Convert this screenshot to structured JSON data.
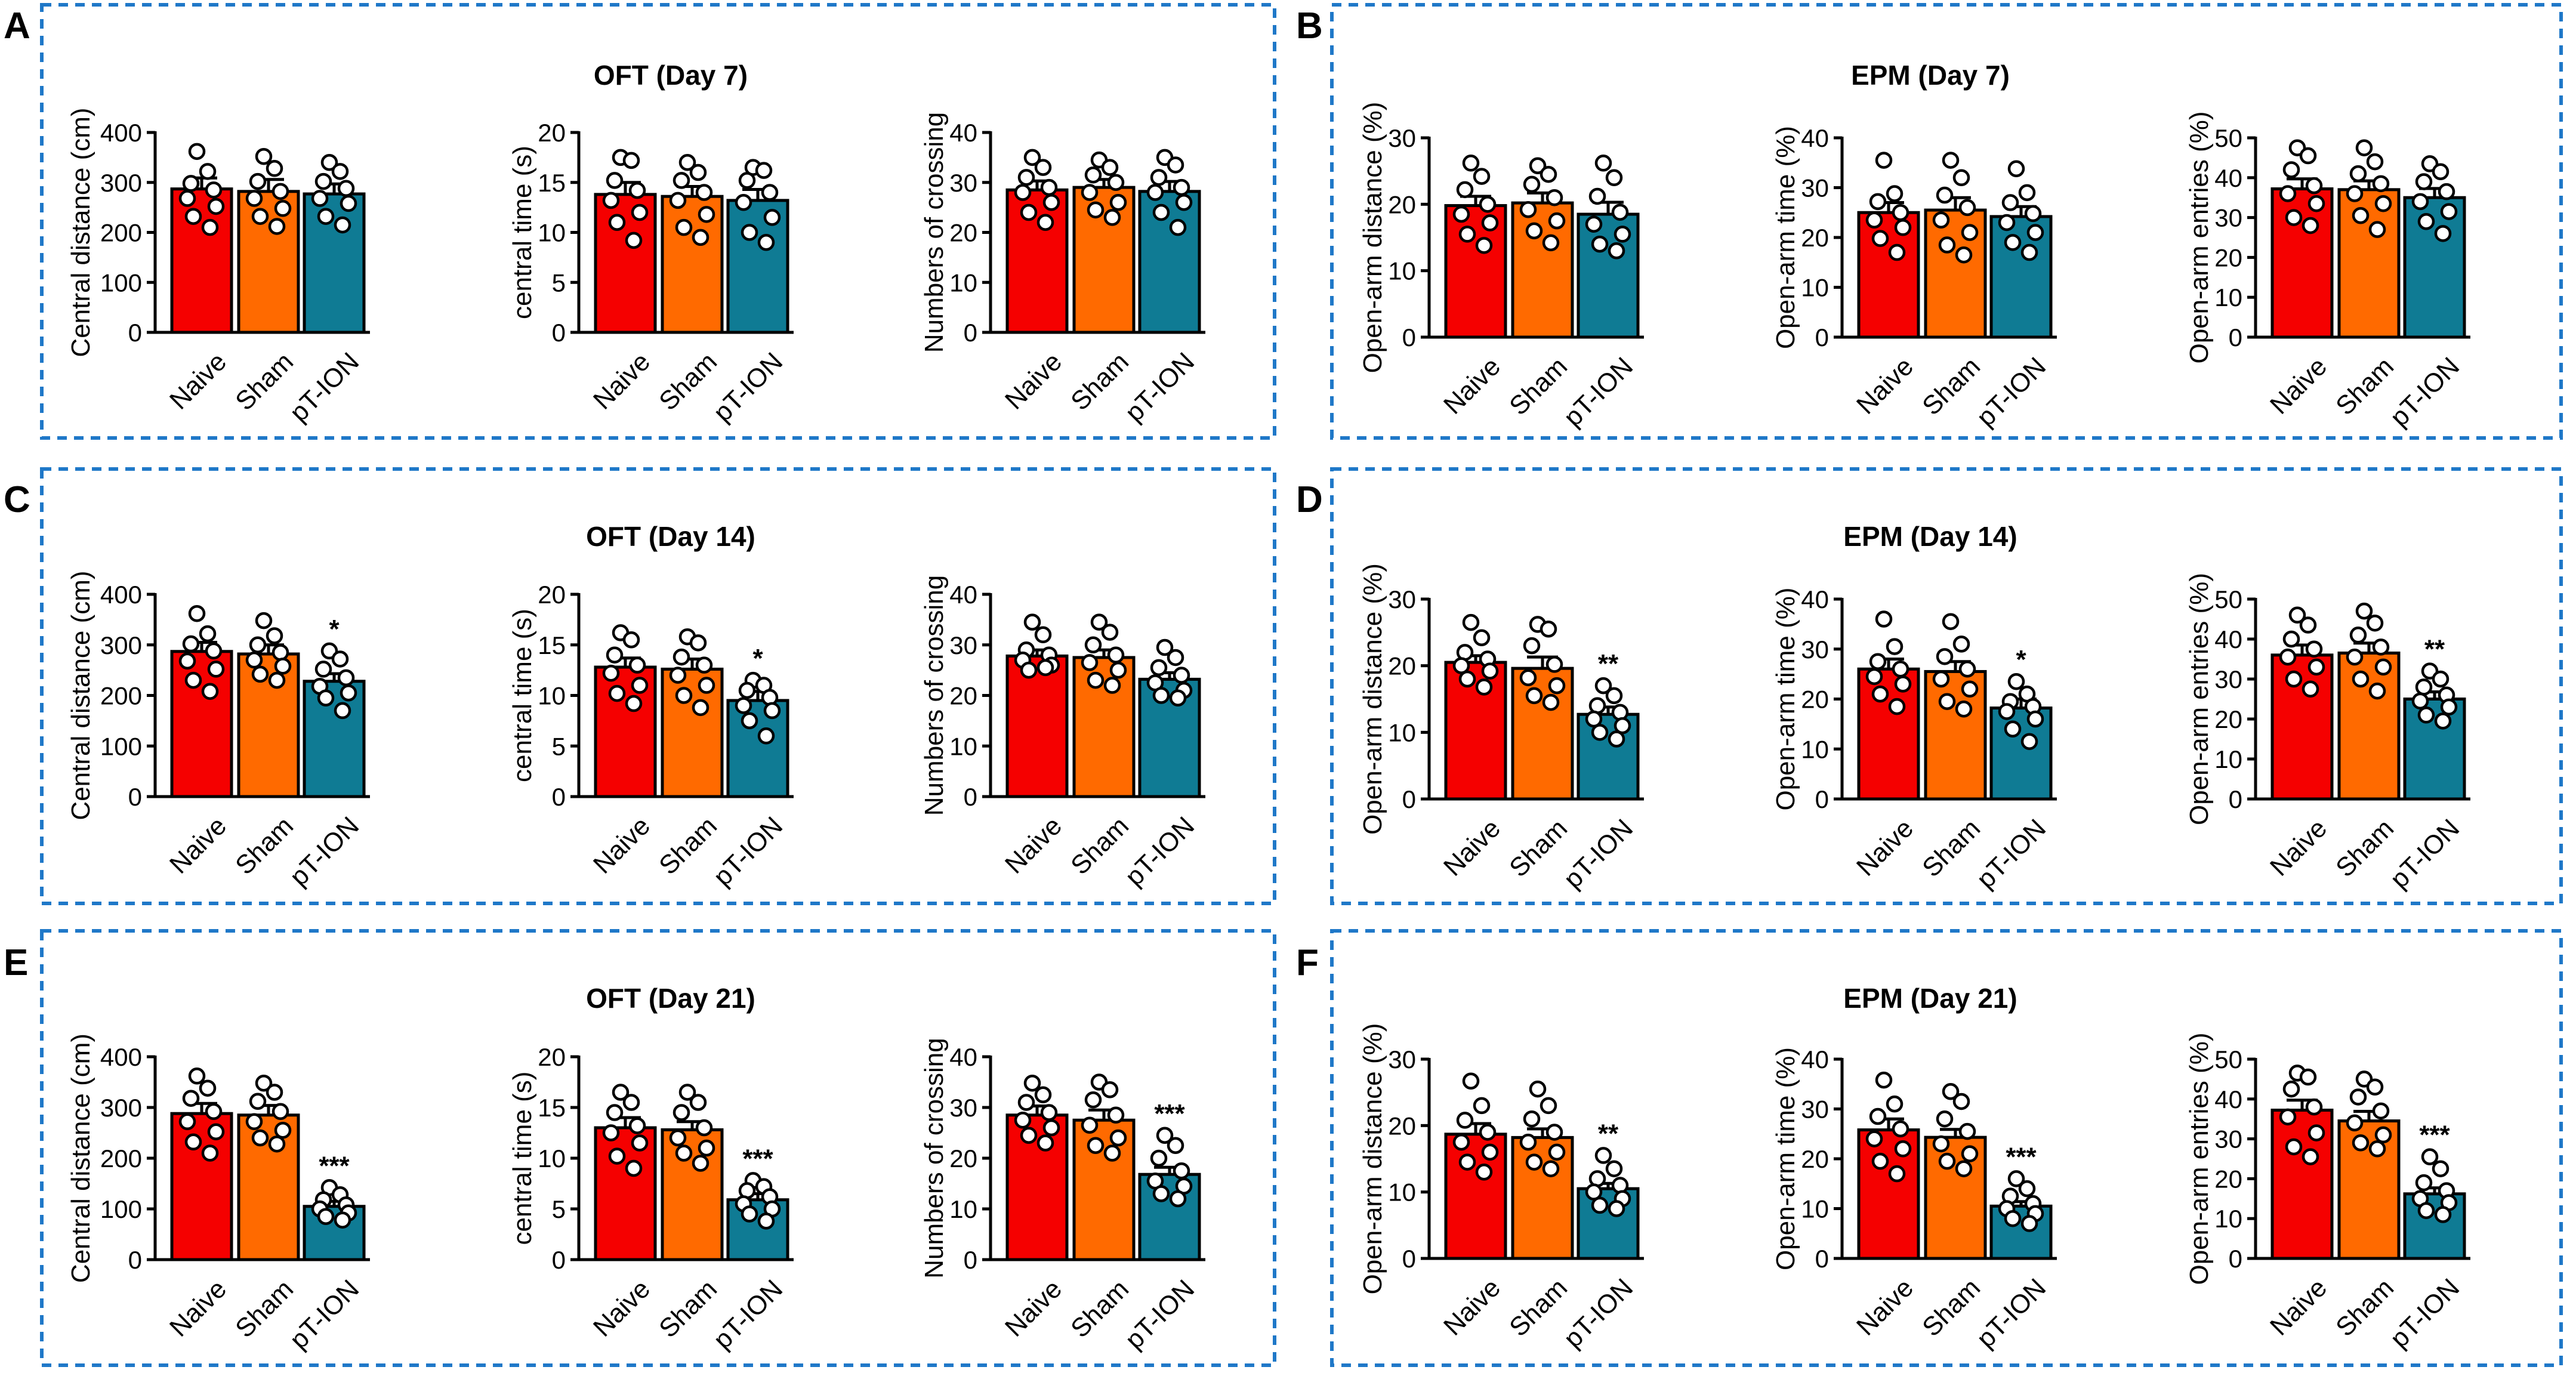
{
  "figure": {
    "group_colors": [
      "#f50000",
      "#ff6a00",
      "#0f7b94"
    ],
    "panels": [
      {
        "letter": "A",
        "title": "OFT (Day 7)"
      },
      {
        "letter": "B",
        "title": "EPM (Day 7)"
      },
      {
        "letter": "C",
        "title": "OFT (Day 14)"
      },
      {
        "letter": "D",
        "title": "EPM (Day 14)"
      },
      {
        "letter": "E",
        "title": "OFT (Day 21)"
      },
      {
        "letter": "F",
        "title": "EPM (Day 21)"
      }
    ]
  },
  "chart_data": [
    {
      "panel": "A",
      "type": "bar",
      "ylabel": "Central distance (cm)",
      "categories": [
        "Naive",
        "Sham",
        "pT-ION"
      ],
      "ylim": [
        0,
        400
      ],
      "yticks": [
        0,
        100,
        200,
        300,
        400
      ],
      "values": [
        287,
        282,
        277
      ],
      "sem": [
        22,
        24,
        20
      ],
      "significance": [
        "",
        "",
        ""
      ],
      "points": [
        [
          362,
          322,
          298,
          285,
          268,
          252,
          232,
          210
        ],
        [
          352,
          328,
          302,
          282,
          268,
          248,
          232,
          212
        ],
        [
          340,
          322,
          302,
          288,
          268,
          258,
          232,
          215
        ]
      ]
    },
    {
      "panel": "A",
      "type": "bar",
      "ylabel": "central time (s)",
      "categories": [
        "Naive",
        "Sham",
        "pT-ION"
      ],
      "ylim": [
        0,
        20
      ],
      "yticks": [
        0,
        5,
        10,
        15,
        20
      ],
      "values": [
        13.8,
        13.6,
        13.2
      ],
      "sem": [
        1.2,
        1.0,
        1.1
      ],
      "significance": [
        "",
        "",
        ""
      ],
      "points": [
        [
          17.5,
          17.2,
          15.2,
          14.2,
          13.2,
          12.0,
          11.0,
          9.2
        ],
        [
          17.0,
          16.0,
          15.2,
          14.0,
          13.2,
          11.8,
          10.5,
          9.5
        ],
        [
          16.5,
          16.2,
          15.2,
          14.0,
          13.0,
          11.5,
          10.0,
          9.0
        ]
      ]
    },
    {
      "panel": "A",
      "type": "bar",
      "ylabel": "Numbers of crossing",
      "categories": [
        "Naive",
        "Sham",
        "pT-ION"
      ],
      "ylim": [
        0,
        40
      ],
      "yticks": [
        0,
        10,
        20,
        30,
        40
      ],
      "values": [
        28.5,
        29,
        28.2
      ],
      "sem": [
        1.8,
        1.6,
        2.0
      ],
      "significance": [
        "",
        "",
        ""
      ],
      "points": [
        [
          35,
          33,
          31,
          29,
          28,
          26,
          24,
          22
        ],
        [
          34.5,
          33,
          31.5,
          30,
          28,
          26,
          24.5,
          23
        ],
        [
          35,
          33.5,
          31,
          29,
          28,
          26,
          24,
          21
        ]
      ]
    },
    {
      "panel": "B",
      "type": "bar",
      "ylabel": "Open-arm distance (%)",
      "categories": [
        "Naive",
        "Sham",
        "pT-ION"
      ],
      "ylim": [
        0,
        30
      ],
      "yticks": [
        0,
        10,
        20,
        30
      ],
      "values": [
        19.8,
        20.2,
        18.5
      ],
      "sem": [
        1.4,
        1.5,
        1.8
      ],
      "significance": [
        "",
        "",
        ""
      ],
      "points": [
        [
          26.2,
          24.2,
          22.2,
          20.0,
          18.5,
          17.2,
          15.5,
          13.8
        ],
        [
          25.8,
          24.5,
          23.0,
          21.0,
          19.2,
          17.5,
          16.0,
          14.2
        ],
        [
          26.2,
          24.0,
          21.2,
          18.8,
          17.0,
          15.5,
          14.0,
          13.0
        ]
      ]
    },
    {
      "panel": "B",
      "type": "bar",
      "ylabel": "Open-arm time (%)",
      "categories": [
        "Naive",
        "Sham",
        "pT-ION"
      ],
      "ylim": [
        0,
        40
      ],
      "yticks": [
        0,
        10,
        20,
        30,
        40
      ],
      "values": [
        25,
        25.5,
        24.2
      ],
      "sem": [
        2.0,
        2.5,
        2.0
      ],
      "significance": [
        "",
        "",
        ""
      ],
      "points": [
        [
          35.5,
          28.8,
          27.2,
          25.0,
          23.5,
          22.0,
          19.8,
          17.0
        ],
        [
          35.5,
          32.0,
          28.5,
          26.0,
          23.5,
          21.0,
          18.5,
          16.5
        ],
        [
          33.8,
          29.0,
          27.0,
          24.8,
          23.0,
          21.0,
          19.0,
          17.0
        ]
      ]
    },
    {
      "panel": "B",
      "type": "bar",
      "ylabel": "Open-arm entries (%)",
      "categories": [
        "Naive",
        "Sham",
        "pT-ION"
      ],
      "ylim": [
        0,
        50
      ],
      "yticks": [
        0,
        10,
        20,
        30,
        40,
        50
      ],
      "values": [
        37.2,
        37.0,
        35.0
      ],
      "sem": [
        2.5,
        2.2,
        2.3
      ],
      "significance": [
        "",
        "",
        ""
      ],
      "points": [
        [
          47.5,
          45.5,
          42.0,
          38.0,
          36.0,
          33.5,
          30.0,
          28.0
        ],
        [
          47.5,
          44.0,
          41.0,
          38.5,
          36.0,
          33.5,
          30.5,
          27.0
        ],
        [
          43.5,
          41.5,
          39.0,
          36.5,
          34.0,
          31.5,
          29.0,
          26.0
        ]
      ]
    },
    {
      "panel": "C",
      "type": "bar",
      "ylabel": "Central distance (cm)",
      "categories": [
        "Naive",
        "Sham",
        "pT-ION"
      ],
      "ylim": [
        0,
        400
      ],
      "yticks": [
        0,
        100,
        200,
        300,
        400
      ],
      "values": [
        287,
        282,
        228
      ],
      "sem": [
        18,
        18,
        15
      ],
      "significance": [
        "",
        "",
        "*"
      ],
      "points": [
        [
          362,
          322,
          302,
          288,
          268,
          252,
          230,
          208
        ],
        [
          348,
          318,
          300,
          285,
          270,
          258,
          242,
          230
        ],
        [
          288,
          272,
          252,
          235,
          218,
          205,
          195,
          170
        ]
      ]
    },
    {
      "panel": "C",
      "type": "bar",
      "ylabel": "central time (s)",
      "categories": [
        "Naive",
        "Sham",
        "pT-ION"
      ],
      "ylim": [
        0,
        20
      ],
      "yticks": [
        0,
        5,
        10,
        15,
        20
      ],
      "values": [
        12.8,
        12.6,
        9.5
      ],
      "sem": [
        0.9,
        1.0,
        0.9
      ],
      "significance": [
        "",
        "",
        "*"
      ],
      "points": [
        [
          16.2,
          15.5,
          14.0,
          13.0,
          12.2,
          11.0,
          10.2,
          9.2
        ],
        [
          15.8,
          15.2,
          13.8,
          13.0,
          12.0,
          11.0,
          10.0,
          8.8
        ],
        [
          11.5,
          11.0,
          10.5,
          9.8,
          9.0,
          8.5,
          7.5,
          6.0
        ]
      ]
    },
    {
      "panel": "C",
      "type": "bar",
      "ylabel": "Numbers of crossing",
      "categories": [
        "Naive",
        "Sham",
        "pT-ION"
      ],
      "ylim": [
        0,
        40
      ],
      "yticks": [
        0,
        10,
        20,
        30,
        40
      ],
      "values": [
        27.8,
        27.5,
        23.2
      ],
      "sem": [
        1.2,
        1.5,
        1.3
      ],
      "significance": [
        "",
        "",
        ""
      ],
      "points": [
        [
          34.5,
          32.0,
          29.0,
          28.0,
          27.0,
          26.0,
          25.0,
          25.5
        ],
        [
          34.5,
          32.5,
          30.0,
          28.0,
          26.5,
          25.0,
          23.0,
          22.0
        ],
        [
          29.5,
          27.5,
          25.5,
          24.0,
          22.5,
          21.0,
          20.0,
          19.5
        ]
      ]
    },
    {
      "panel": "D",
      "type": "bar",
      "ylabel": "Open-arm distance (%)",
      "categories": [
        "Naive",
        "Sham",
        "pT-ION"
      ],
      "ylim": [
        0,
        30
      ],
      "yticks": [
        0,
        10,
        20,
        30
      ],
      "values": [
        20.5,
        19.6,
        12.7
      ],
      "sem": [
        1.0,
        1.7,
        1.1
      ],
      "significance": [
        "",
        "",
        "**"
      ],
      "points": [
        [
          26.5,
          24.2,
          22.0,
          21.0,
          20.0,
          19.2,
          18.0,
          16.8
        ],
        [
          26.2,
          25.5,
          23.0,
          20.2,
          18.2,
          17.0,
          15.5,
          14.5
        ],
        [
          17.0,
          15.5,
          14.0,
          13.0,
          12.0,
          11.0,
          10.0,
          9.0
        ]
      ]
    },
    {
      "panel": "D",
      "type": "bar",
      "ylabel": "Open-arm time (%)",
      "categories": [
        "Naive",
        "Sham",
        "pT-ION"
      ],
      "ylim": [
        0,
        40
      ],
      "yticks": [
        0,
        10,
        20,
        30,
        40
      ],
      "values": [
        26.0,
        25.5,
        18.2
      ],
      "sem": [
        2.0,
        2.0,
        1.8
      ],
      "significance": [
        "",
        "",
        "*"
      ],
      "points": [
        [
          36.0,
          30.5,
          27.5,
          26.0,
          24.5,
          23.0,
          21.0,
          18.5
        ],
        [
          35.5,
          31.0,
          28.5,
          26.0,
          24.0,
          22.0,
          19.5,
          18.0
        ],
        [
          23.5,
          21.0,
          19.5,
          18.5,
          17.5,
          16.0,
          14.0,
          11.5
        ]
      ]
    },
    {
      "panel": "D",
      "type": "bar",
      "ylabel": "Open-arm entries (%)",
      "categories": [
        "Naive",
        "Sham",
        "pT-ION"
      ],
      "ylim": [
        0,
        50
      ],
      "yticks": [
        0,
        10,
        20,
        30,
        40,
        50
      ],
      "values": [
        36.0,
        36.5,
        25.0
      ],
      "sem": [
        2.5,
        2.5,
        1.8
      ],
      "significance": [
        "",
        "",
        "**"
      ],
      "points": [
        [
          46.0,
          43.5,
          40.0,
          37.5,
          35.5,
          33.0,
          30.0,
          27.5
        ],
        [
          47.0,
          44.0,
          41.0,
          38.0,
          35.5,
          33.0,
          30.0,
          27.0
        ],
        [
          32.0,
          30.0,
          28.0,
          26.0,
          24.5,
          23.0,
          21.0,
          19.5
        ]
      ]
    },
    {
      "panel": "E",
      "type": "bar",
      "ylabel": "Central distance (cm)",
      "categories": [
        "Naive",
        "Sham",
        "pT-ION"
      ],
      "ylim": [
        0,
        400
      ],
      "yticks": [
        0,
        100,
        200,
        300,
        400
      ],
      "values": [
        288,
        285,
        105
      ],
      "sem": [
        20,
        19,
        10
      ],
      "significance": [
        "",
        "",
        "***"
      ],
      "points": [
        [
          362,
          338,
          318,
          292,
          272,
          252,
          232,
          210
        ],
        [
          348,
          330,
          312,
          292,
          272,
          255,
          240,
          228
        ],
        [
          142,
          128,
          118,
          108,
          100,
          92,
          85,
          78
        ]
      ]
    },
    {
      "panel": "E",
      "type": "bar",
      "ylabel": "central time (s)",
      "categories": [
        "Naive",
        "Sham",
        "pT-ION"
      ],
      "ylim": [
        0,
        20
      ],
      "yticks": [
        0,
        5,
        10,
        15,
        20
      ],
      "values": [
        13.0,
        12.8,
        5.9
      ],
      "sem": [
        1.0,
        0.8,
        0.6
      ],
      "significance": [
        "",
        "",
        "***"
      ],
      "points": [
        [
          16.5,
          15.5,
          14.5,
          13.2,
          12.5,
          11.5,
          10.2,
          9.0
        ],
        [
          16.5,
          15.5,
          14.5,
          13.0,
          12.0,
          11.0,
          10.5,
          9.5
        ],
        [
          7.8,
          7.2,
          6.8,
          6.2,
          5.5,
          5.0,
          4.5,
          3.8
        ]
      ]
    },
    {
      "panel": "E",
      "type": "bar",
      "ylabel": "Numbers of crossing",
      "categories": [
        "Naive",
        "Sham",
        "pT-ION"
      ],
      "ylim": [
        0,
        40
      ],
      "yticks": [
        0,
        10,
        20,
        30,
        40
      ],
      "values": [
        28.5,
        27.5,
        16.8
      ],
      "sem": [
        1.8,
        2.0,
        1.4
      ],
      "significance": [
        "",
        "",
        "***"
      ],
      "points": [
        [
          34.8,
          32.5,
          31.0,
          29.0,
          27.5,
          26.0,
          24.5,
          23.0
        ],
        [
          35.0,
          33.5,
          31.5,
          28.5,
          26.5,
          24.0,
          22.5,
          21.0
        ],
        [
          24.5,
          22.5,
          20.0,
          17.5,
          15.5,
          14.5,
          13.0,
          12.0
        ]
      ]
    },
    {
      "panel": "F",
      "type": "bar",
      "ylabel": "Open-arm distance (%)",
      "categories": [
        "Naive",
        "Sham",
        "pT-ION"
      ],
      "ylim": [
        0,
        30
      ],
      "yticks": [
        0,
        10,
        20,
        30
      ],
      "values": [
        18.7,
        18.2,
        10.5
      ],
      "sem": [
        1.6,
        1.3,
        0.8
      ],
      "significance": [
        "",
        "",
        "**"
      ],
      "points": [
        [
          26.7,
          23.0,
          20.8,
          19.0,
          17.5,
          16.0,
          14.5,
          13.0
        ],
        [
          25.5,
          23.0,
          21.0,
          19.0,
          17.5,
          16.0,
          14.5,
          13.5
        ],
        [
          15.5,
          13.5,
          12.0,
          11.0,
          10.0,
          9.0,
          8.0,
          7.5
        ]
      ]
    },
    {
      "panel": "F",
      "type": "bar",
      "ylabel": "Open-arm time (%)",
      "categories": [
        "Naive",
        "Sham",
        "pT-ION"
      ],
      "ylim": [
        0,
        40
      ],
      "yticks": [
        0,
        10,
        20,
        30,
        40
      ],
      "values": [
        25.8,
        24.3,
        10.5
      ],
      "sem": [
        2.2,
        1.6,
        0.9
      ],
      "significance": [
        "",
        "",
        "***"
      ],
      "points": [
        [
          35.8,
          31.0,
          28.5,
          26.0,
          24.0,
          22.0,
          19.5,
          17.0
        ],
        [
          33.5,
          31.5,
          28.0,
          25.5,
          23.0,
          21.0,
          19.5,
          18.0
        ],
        [
          16.0,
          14.0,
          12.5,
          11.0,
          10.0,
          9.0,
          8.0,
          7.0
        ]
      ]
    },
    {
      "panel": "F",
      "type": "bar",
      "ylabel": "Open-arm entries (%)",
      "categories": [
        "Naive",
        "Sham",
        "pT-ION"
      ],
      "ylim": [
        0,
        50
      ],
      "yticks": [
        0,
        10,
        20,
        30,
        40,
        50
      ],
      "values": [
        37.2,
        34.5,
        16.2
      ],
      "sem": [
        2.5,
        2.4,
        1.5
      ],
      "significance": [
        "",
        "",
        "***"
      ],
      "points": [
        [
          46.5,
          45.5,
          42.5,
          38.0,
          35.5,
          31.5,
          28.0,
          25.5
        ],
        [
          45.0,
          43.0,
          40.5,
          37.0,
          34.0,
          31.0,
          29.0,
          27.5
        ],
        [
          25.5,
          22.5,
          19.0,
          17.0,
          15.0,
          14.0,
          12.0,
          11.0
        ]
      ]
    }
  ]
}
